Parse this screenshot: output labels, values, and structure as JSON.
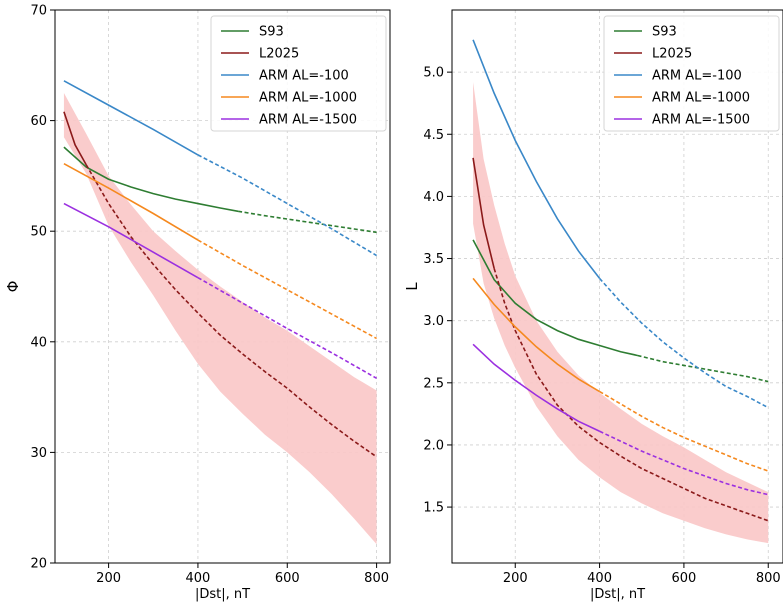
{
  "chart_data": [
    {
      "type": "line",
      "title": "",
      "xlabel": "|Dst|, nT",
      "ylabel": "Φ",
      "xlim": [
        80,
        830
      ],
      "ylim": [
        20,
        70
      ],
      "xticks": [
        200,
        400,
        600,
        800
      ],
      "yticks": [
        20,
        30,
        40,
        50,
        60,
        70
      ],
      "grid": true,
      "legend_position": "top-right",
      "series": [
        {
          "name": "S93",
          "color": "#2e7d32",
          "solid_until": 490,
          "points": [
            [
              100,
              57.6
            ],
            [
              150,
              55.8
            ],
            [
              200,
              54.7
            ],
            [
              250,
              54.0
            ],
            [
              300,
              53.4
            ],
            [
              350,
              52.9
            ],
            [
              400,
              52.5
            ],
            [
              450,
              52.1
            ],
            [
              490,
              51.8
            ],
            [
              550,
              51.4
            ],
            [
              600,
              51.1
            ],
            [
              650,
              50.8
            ],
            [
              700,
              50.5
            ],
            [
              750,
              50.2
            ],
            [
              800,
              49.9
            ]
          ]
        },
        {
          "name": "L2025",
          "color": "#8b1a1a",
          "solid_until": 150,
          "points": [
            [
              100,
              60.8
            ],
            [
              125,
              57.8
            ],
            [
              150,
              56.0
            ],
            [
              200,
              52.5
            ],
            [
              250,
              49.5
            ],
            [
              300,
              47.0
            ],
            [
              350,
              44.7
            ],
            [
              400,
              42.6
            ],
            [
              450,
              40.6
            ],
            [
              500,
              38.9
            ],
            [
              550,
              37.3
            ],
            [
              600,
              35.8
            ],
            [
              650,
              34.1
            ],
            [
              700,
              32.5
            ],
            [
              750,
              31.0
            ],
            [
              800,
              29.6
            ]
          ],
          "band": {
            "color": "#f9c6c6",
            "upper": [
              [
                100,
                62.5
              ],
              [
                150,
                58.8
              ],
              [
                200,
                55.0
              ],
              [
                250,
                52.4
              ],
              [
                300,
                50.0
              ],
              [
                350,
                48.2
              ],
              [
                400,
                46.5
              ],
              [
                450,
                45.0
              ],
              [
                500,
                43.6
              ],
              [
                550,
                42.2
              ],
              [
                600,
                41.0
              ],
              [
                650,
                39.6
              ],
              [
                700,
                38.2
              ],
              [
                750,
                36.8
              ],
              [
                800,
                35.6
              ]
            ],
            "lower": [
              [
                100,
                58.5
              ],
              [
                150,
                55.2
              ],
              [
                200,
                50.5
              ],
              [
                250,
                47.2
              ],
              [
                300,
                44.2
              ],
              [
                350,
                41.0
              ],
              [
                400,
                38.0
              ],
              [
                450,
                35.5
              ],
              [
                500,
                33.5
              ],
              [
                550,
                31.6
              ],
              [
                600,
                30.0
              ],
              [
                650,
                28.2
              ],
              [
                700,
                26.2
              ],
              [
                750,
                24.0
              ],
              [
                800,
                21.7
              ]
            ]
          }
        },
        {
          "name": "ARM AL=-100",
          "color": "#3a88c8",
          "solid_until": 400,
          "points": [
            [
              100,
              63.6
            ],
            [
              200,
              61.4
            ],
            [
              300,
              59.2
            ],
            [
              400,
              56.9
            ],
            [
              500,
              54.8
            ],
            [
              600,
              52.5
            ],
            [
              700,
              50.2
            ],
            [
              800,
              47.8
            ]
          ]
        },
        {
          "name": "ARM AL=-1000",
          "color": "#f5891f",
          "solid_until": 400,
          "points": [
            [
              100,
              56.1
            ],
            [
              200,
              53.9
            ],
            [
              300,
              51.6
            ],
            [
              400,
              49.2
            ],
            [
              500,
              46.9
            ],
            [
              600,
              44.7
            ],
            [
              700,
              42.5
            ],
            [
              800,
              40.3
            ]
          ]
        },
        {
          "name": "ARM AL=-1500",
          "color": "#9b30e0",
          "solid_until": 400,
          "points": [
            [
              100,
              52.5
            ],
            [
              200,
              50.4
            ],
            [
              300,
              48.1
            ],
            [
              400,
              45.8
            ],
            [
              500,
              43.5
            ],
            [
              600,
              41.2
            ],
            [
              700,
              39.0
            ],
            [
              800,
              36.7
            ]
          ]
        }
      ]
    },
    {
      "type": "line",
      "title": "",
      "xlabel": "|Dst|, nT",
      "ylabel": "L",
      "xlim": [
        50,
        835
      ],
      "ylim": [
        1.05,
        5.5
      ],
      "xticks": [
        200,
        400,
        600,
        800
      ],
      "yticks": [
        1.5,
        2.0,
        2.5,
        3.0,
        3.5,
        4.0,
        4.5,
        5.0
      ],
      "grid": true,
      "legend_position": "top-right",
      "series": [
        {
          "name": "S93",
          "color": "#2e7d32",
          "solid_until": 490,
          "points": [
            [
              100,
              3.65
            ],
            [
              150,
              3.33
            ],
            [
              200,
              3.14
            ],
            [
              250,
              3.01
            ],
            [
              300,
              2.92
            ],
            [
              350,
              2.85
            ],
            [
              400,
              2.8
            ],
            [
              450,
              2.75
            ],
            [
              490,
              2.72
            ],
            [
              550,
              2.67
            ],
            [
              600,
              2.64
            ],
            [
              650,
              2.61
            ],
            [
              700,
              2.58
            ],
            [
              750,
              2.55
            ],
            [
              800,
              2.51
            ]
          ]
        },
        {
          "name": "L2025",
          "color": "#8b1a1a",
          "solid_until": 150,
          "points": [
            [
              100,
              4.31
            ],
            [
              125,
              3.77
            ],
            [
              150,
              3.42
            ],
            [
              175,
              3.14
            ],
            [
              200,
              2.92
            ],
            [
              250,
              2.57
            ],
            [
              300,
              2.32
            ],
            [
              350,
              2.15
            ],
            [
              400,
              2.02
            ],
            [
              450,
              1.91
            ],
            [
              500,
              1.81
            ],
            [
              550,
              1.73
            ],
            [
              600,
              1.65
            ],
            [
              650,
              1.57
            ],
            [
              700,
              1.51
            ],
            [
              750,
              1.45
            ],
            [
              800,
              1.39
            ]
          ],
          "band": {
            "color": "#f9c6c6",
            "upper": [
              [
                100,
                4.92
              ],
              [
                125,
                4.3
              ],
              [
                150,
                3.93
              ],
              [
                175,
                3.62
              ],
              [
                200,
                3.36
              ],
              [
                250,
                3.0
              ],
              [
                300,
                2.75
              ],
              [
                350,
                2.56
              ],
              [
                400,
                2.42
              ],
              [
                450,
                2.29
              ],
              [
                500,
                2.17
              ],
              [
                550,
                2.07
              ],
              [
                600,
                1.98
              ],
              [
                650,
                1.88
              ],
              [
                700,
                1.78
              ],
              [
                750,
                1.7
              ],
              [
                800,
                1.62
              ]
            ],
            "lower": [
              [
                100,
                3.78
              ],
              [
                125,
                3.3
              ],
              [
                150,
                3.02
              ],
              [
                175,
                2.8
              ],
              [
                200,
                2.62
              ],
              [
                250,
                2.31
              ],
              [
                300,
                2.07
              ],
              [
                350,
                1.88
              ],
              [
                400,
                1.74
              ],
              [
                450,
                1.62
              ],
              [
                500,
                1.53
              ],
              [
                550,
                1.45
              ],
              [
                600,
                1.39
              ],
              [
                650,
                1.33
              ],
              [
                700,
                1.28
              ],
              [
                750,
                1.24
              ],
              [
                800,
                1.21
              ]
            ]
          }
        },
        {
          "name": "ARM AL=-100",
          "color": "#3a88c8",
          "solid_until": 400,
          "points": [
            [
              100,
              5.26
            ],
            [
              150,
              4.83
            ],
            [
              200,
              4.45
            ],
            [
              250,
              4.12
            ],
            [
              300,
              3.82
            ],
            [
              350,
              3.56
            ],
            [
              400,
              3.34
            ],
            [
              450,
              3.15
            ],
            [
              500,
              2.98
            ],
            [
              550,
              2.83
            ],
            [
              600,
              2.7
            ],
            [
              650,
              2.58
            ],
            [
              700,
              2.47
            ],
            [
              750,
              2.39
            ],
            [
              800,
              2.3
            ]
          ]
        },
        {
          "name": "ARM AL=-1000",
          "color": "#f5891f",
          "solid_until": 400,
          "points": [
            [
              100,
              3.34
            ],
            [
              150,
              3.13
            ],
            [
              200,
              2.95
            ],
            [
              250,
              2.79
            ],
            [
              300,
              2.65
            ],
            [
              350,
              2.53
            ],
            [
              400,
              2.43
            ],
            [
              450,
              2.33
            ],
            [
              500,
              2.23
            ],
            [
              550,
              2.14
            ],
            [
              600,
              2.06
            ],
            [
              650,
              1.99
            ],
            [
              700,
              1.92
            ],
            [
              750,
              1.85
            ],
            [
              800,
              1.79
            ]
          ]
        },
        {
          "name": "ARM AL=-1500",
          "color": "#9b30e0",
          "solid_until": 400,
          "points": [
            [
              100,
              2.81
            ],
            [
              150,
              2.65
            ],
            [
              200,
              2.52
            ],
            [
              250,
              2.4
            ],
            [
              300,
              2.29
            ],
            [
              350,
              2.19
            ],
            [
              400,
              2.11
            ],
            [
              450,
              2.03
            ],
            [
              500,
              1.95
            ],
            [
              550,
              1.88
            ],
            [
              600,
              1.81
            ],
            [
              650,
              1.75
            ],
            [
              700,
              1.69
            ],
            [
              750,
              1.64
            ],
            [
              800,
              1.6
            ]
          ]
        }
      ]
    }
  ]
}
